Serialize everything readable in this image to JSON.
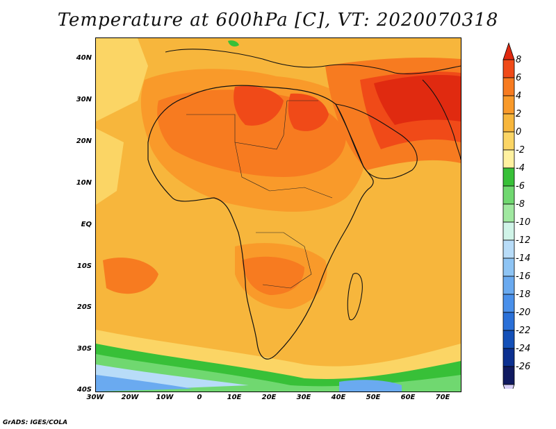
{
  "title": "Temperature at 600hPa [C], VT: 2020070318",
  "credit": "GrADS: IGES/COLA",
  "lat_labels": [
    "40N",
    "30N",
    "20N",
    "10N",
    "EQ",
    "10S",
    "20S",
    "30S",
    "40S"
  ],
  "lon_labels": [
    "30W",
    "20W",
    "10W",
    "0",
    "10E",
    "20E",
    "30E",
    "40E",
    "50E",
    "60E",
    "70E"
  ],
  "colorbar": {
    "labels": [
      "8",
      "6",
      "4",
      "2",
      "0",
      "-2",
      "-4",
      "-6",
      "-8",
      "-10",
      "-12",
      "-14",
      "-16",
      "-18",
      "-20",
      "-22",
      "-24",
      "-26"
    ],
    "colors": [
      "#e02a10",
      "#f04a18",
      "#f77b20",
      "#f99a2a",
      "#f7b63c",
      "#fbd565",
      "#fff1a0",
      "#38c038",
      "#70d870",
      "#a0e8a0",
      "#d0f4e8",
      "#b8dcf8",
      "#8ec4f4",
      "#6aaaf0",
      "#4a90ea",
      "#2a70d8",
      "#1450b8",
      "#0c3090",
      "#101a60",
      "#d8d0f8"
    ]
  },
  "field_colors": {
    "warm_max": "#e02a10",
    "warm_high": "#f04a18",
    "warm": "#f77b20",
    "mild": "#f99a2a",
    "base": "#f7b63c",
    "cool": "#fbd565",
    "cooler": "#fff1a0",
    "green": "#38c038",
    "lightgreen": "#70d870",
    "palegreen": "#a0e8a0",
    "paleblue": "#d0f4e8",
    "lightblue": "#b8dcf8",
    "blue": "#6aaaf0",
    "deepblue": "#2a70d8"
  }
}
